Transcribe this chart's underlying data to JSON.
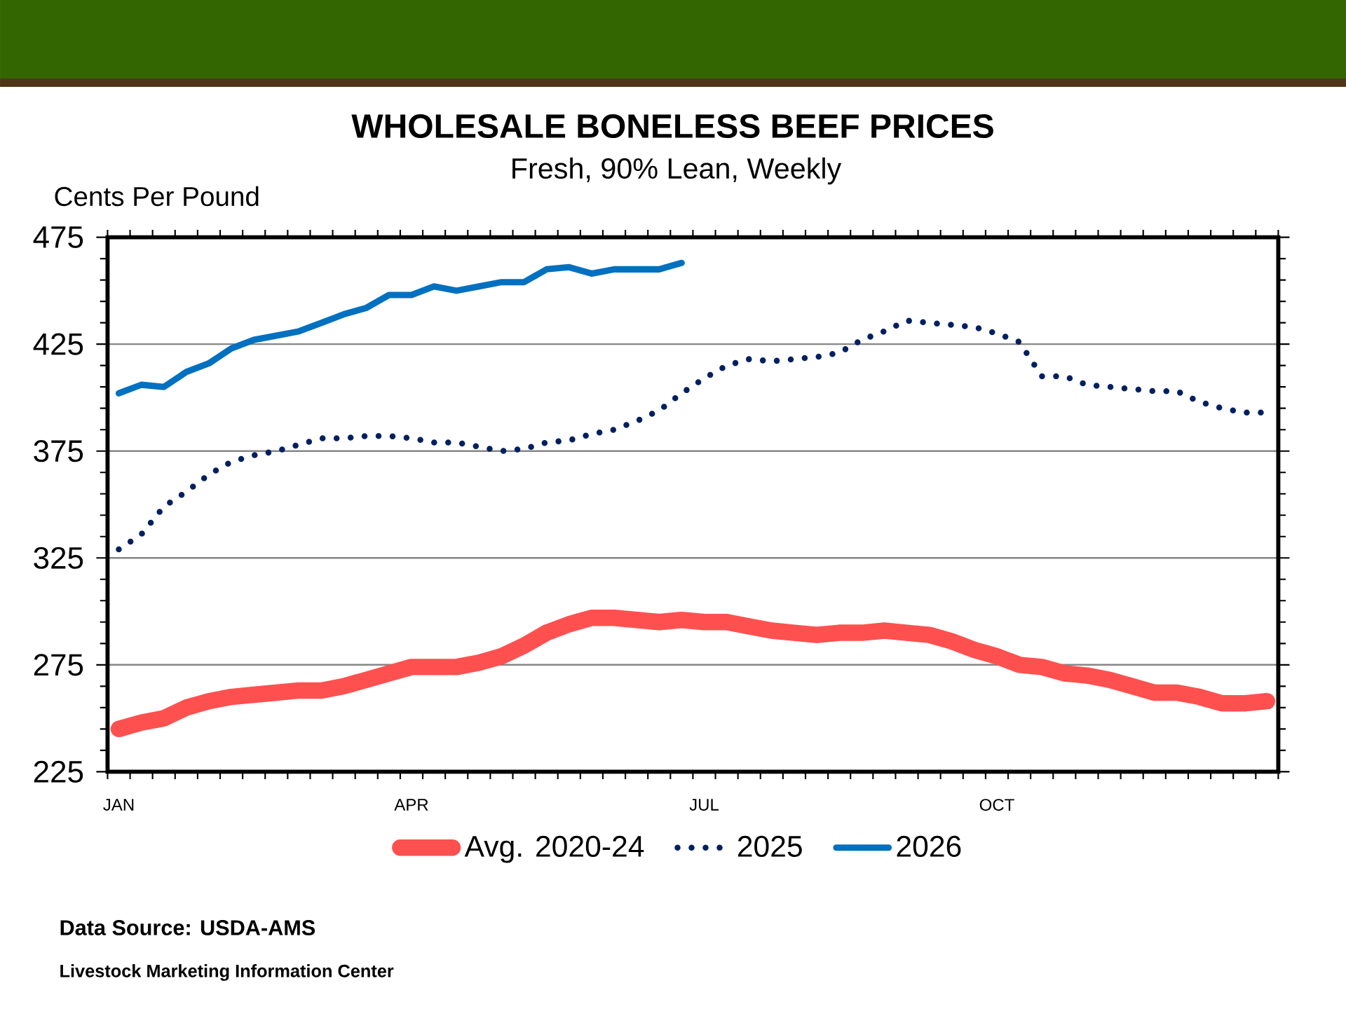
{
  "chart_data": {
    "type": "line",
    "title": "WHOLESALE BONELESS BEEF PRICES",
    "subtitle": "Fresh, 90% Lean, Weekly",
    "ylabel": "Cents Per Pound",
    "categories": [
      "JAN",
      null,
      null,
      null,
      null,
      null,
      null,
      null,
      null,
      null,
      null,
      null,
      null,
      "APR",
      null,
      null,
      null,
      null,
      null,
      null,
      null,
      null,
      null,
      null,
      null,
      null,
      "JUL",
      null,
      null,
      null,
      null,
      null,
      null,
      null,
      null,
      null,
      null,
      null,
      null,
      "OCT",
      null,
      null,
      null,
      null,
      null,
      null,
      null,
      null,
      null,
      null,
      null,
      null
    ],
    "series": [
      {
        "name": "Avg. 2020-24",
        "color": "#ff5050",
        "values": [
          245,
          248,
          250,
          255,
          258,
          260,
          261,
          262,
          263,
          263,
          265,
          268,
          271,
          274,
          274,
          274,
          276,
          279,
          284,
          290,
          294,
          297,
          297,
          296,
          295,
          296,
          295,
          295,
          293,
          291,
          290,
          289,
          290,
          290,
          291,
          290,
          289,
          286,
          282,
          279,
          275,
          274,
          271,
          270,
          268,
          265,
          262,
          262,
          260,
          257,
          257,
          258
        ]
      },
      {
        "name": "2025",
        "color": "#002060",
        "line_style": "dotted",
        "values": [
          329,
          336,
          349,
          356,
          364,
          370,
          373,
          375,
          378,
          381,
          381,
          382,
          382,
          381,
          379,
          379,
          377,
          375,
          376,
          379,
          380,
          383,
          385,
          389,
          394,
          402,
          409,
          415,
          418,
          417,
          418,
          419,
          421,
          427,
          431,
          436,
          435,
          434,
          433,
          430,
          426,
          410,
          410,
          406,
          405,
          404,
          403,
          403,
          398,
          395,
          393,
          393
        ]
      },
      {
        "name": "2026",
        "color": "#0070c0",
        "values": [
          402,
          406,
          405,
          412,
          416,
          423,
          427,
          429,
          431,
          435,
          439,
          442,
          448,
          448,
          452,
          450,
          452,
          454,
          454,
          460,
          461,
          458,
          460,
          460,
          460,
          463,
          null,
          null,
          null,
          null,
          null,
          null,
          null,
          null,
          null,
          null,
          null,
          null,
          null,
          null,
          null,
          null,
          null,
          null,
          null,
          null,
          null,
          null,
          null,
          null,
          null,
          null
        ]
      }
    ],
    "ylim": [
      225,
      475
    ],
    "yticks": [
      225,
      275,
      325,
      375,
      425,
      475
    ],
    "grid": "y",
    "legend": "bottom",
    "annotations": [
      "Data Source: USDA-AMS",
      "Livestock Marketing Information Center"
    ]
  }
}
